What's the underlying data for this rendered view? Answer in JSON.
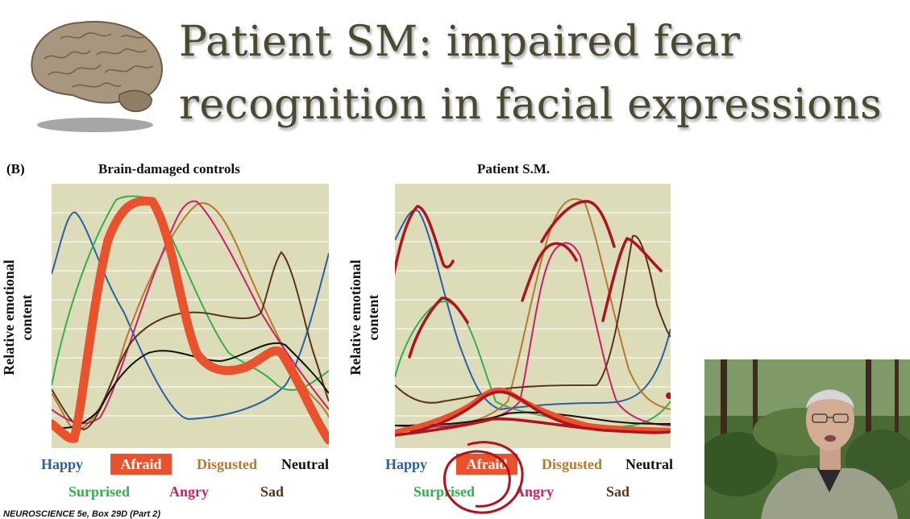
{
  "slide": {
    "title_line1": "Patient SM: impaired fear",
    "title_line2": "recognition in facial expressions",
    "panel_letter": "(B)",
    "citation": "NEUROSCIENCE 5e, Box 29D (Part 2)"
  },
  "left_panel": {
    "title": "Brain-damaged controls",
    "ylabel_line1": "Relative emotional",
    "ylabel_line2": "content",
    "legend": {
      "happy": "Happy",
      "afraid": "Afraid",
      "disgusted": "Disgusted",
      "neutral": "Neutral",
      "surprised": "Surprised",
      "angry": "Angry",
      "sad": "Sad"
    }
  },
  "right_panel": {
    "title": "Patient S.M.",
    "ylabel_line1": "Relative emotional",
    "ylabel_line2": "content",
    "legend": {
      "happy": "Happy",
      "afraid": "Afraid",
      "disgusted": "Disgusted",
      "neutral": "Neutral",
      "surprised": "Surprised",
      "angry": "Angry",
      "sad": "Sad"
    }
  },
  "colors": {
    "happy": "#2a5fa8",
    "afraid": "#e8532e",
    "disgusted": "#b8782e",
    "neutral": "#111111",
    "surprised": "#33b04a",
    "angry": "#cc1f6a",
    "sad": "#5a3418",
    "plot_bg": "#dcdcb8",
    "annotation": "#b0121e",
    "title_text": "#4a4a32"
  },
  "icons": {
    "brain": "brain-image",
    "webcam": "presenter-webcam-video"
  }
}
